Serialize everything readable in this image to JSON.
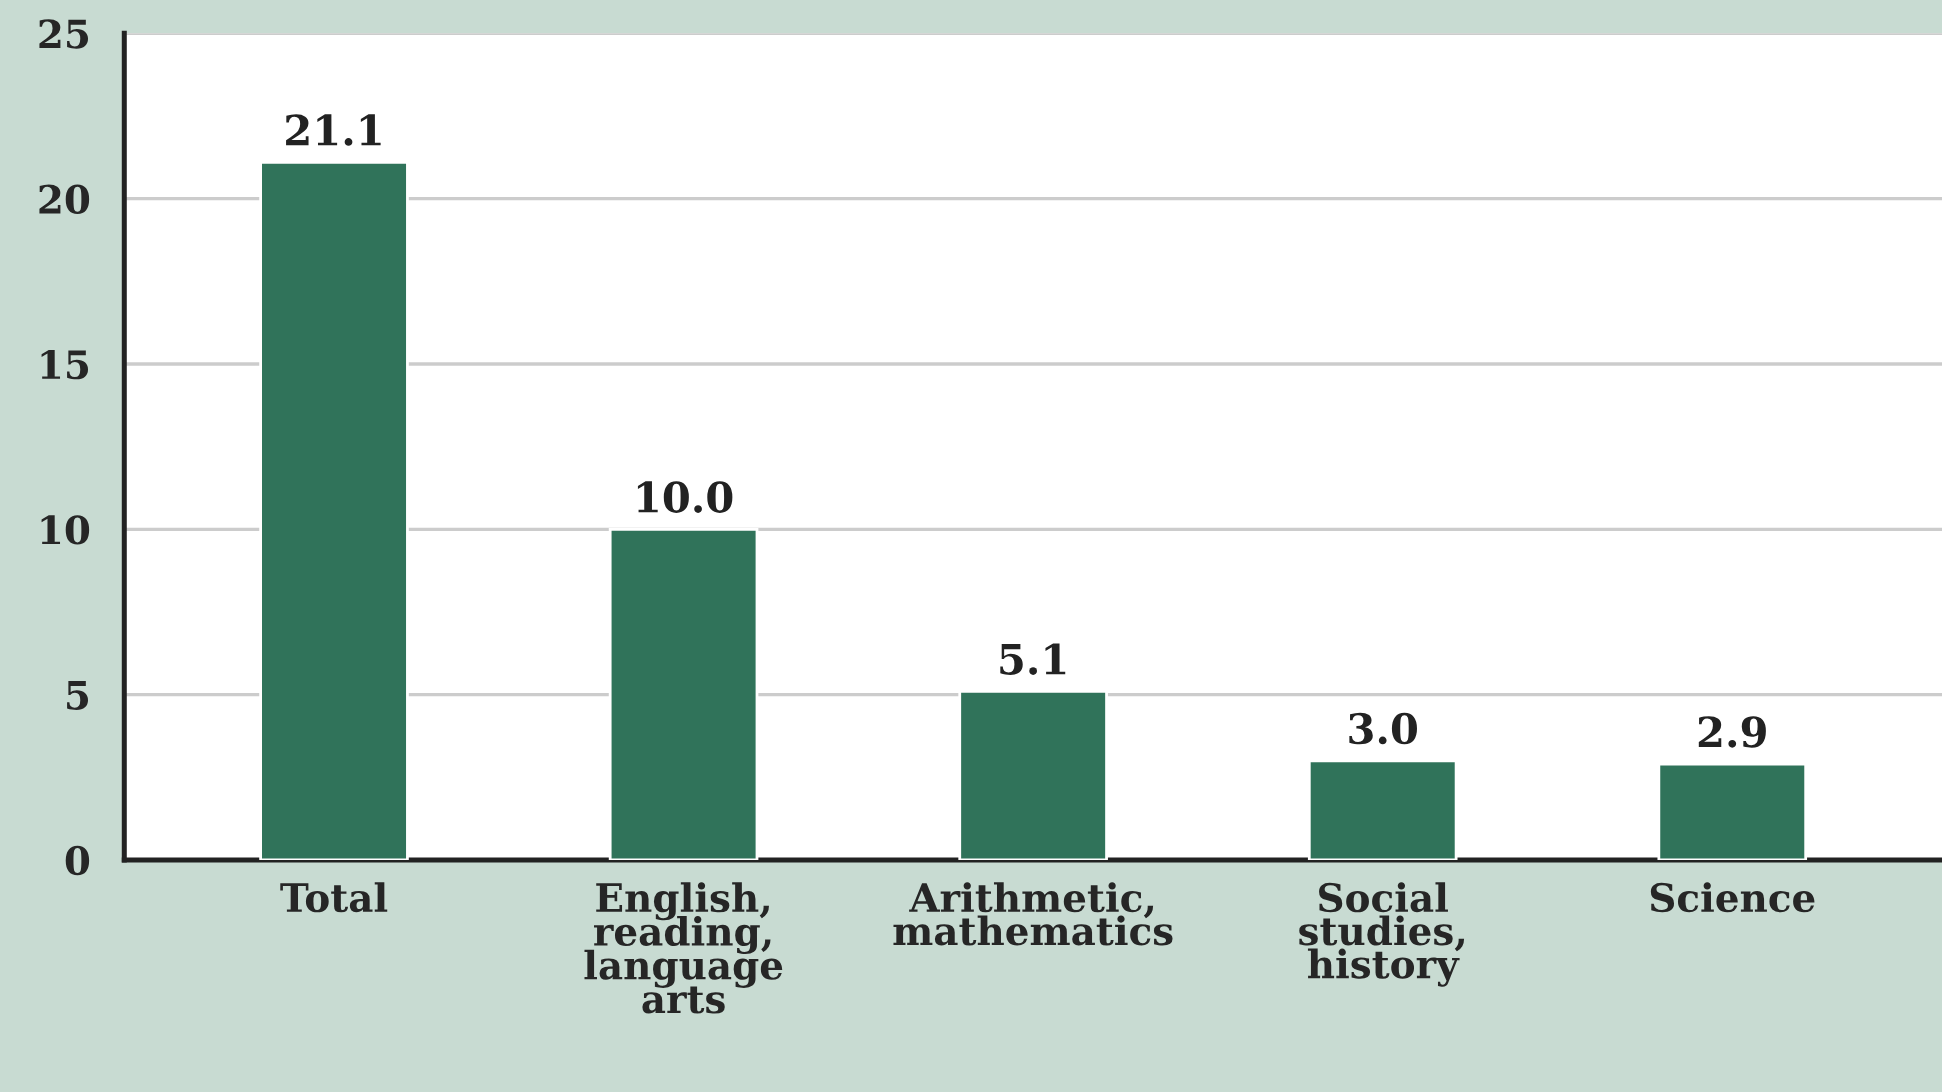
{
  "chart_data": {
    "type": "bar",
    "categories": [
      "Total",
      "English,\nreading,\nlanguage\narts",
      "Arithmetic,\nmathematics",
      "Social\nstudies,\nhistory",
      "Science"
    ],
    "values": [
      21.1,
      10.0,
      5.1,
      3.0,
      2.9
    ],
    "value_labels": [
      "21.1",
      "10.0",
      "5.1",
      "3.0",
      "2.9"
    ],
    "color": "#30735a",
    "ylim": [
      0,
      25
    ],
    "yticks": [
      0,
      5,
      10,
      15,
      20,
      25
    ],
    "grid": "y"
  }
}
